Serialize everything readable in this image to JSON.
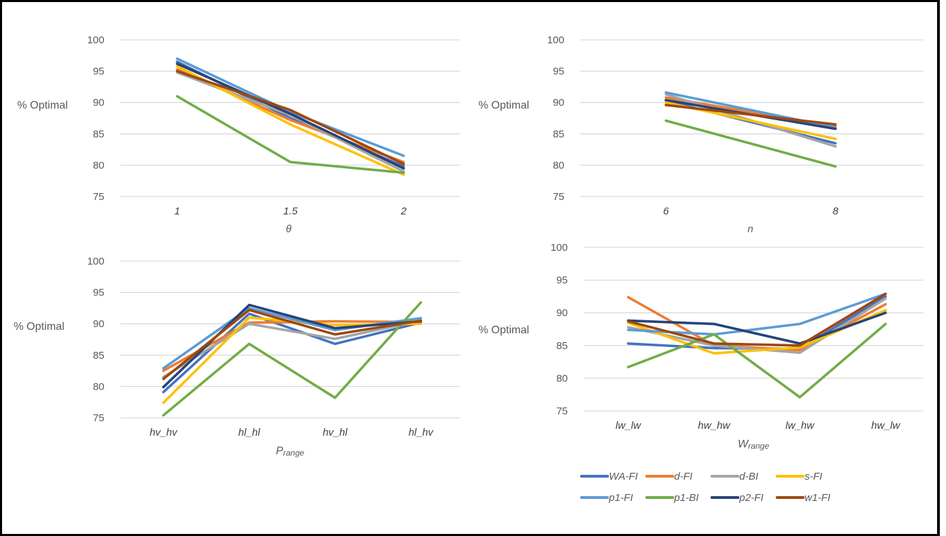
{
  "series_names": [
    "WA-FI",
    "d-FI",
    "d-BI",
    "s-FI",
    "p1-FI",
    "p1-BI",
    "p2-FI",
    "w1-FI"
  ],
  "series_colors": {
    "WA-FI": "#4472C4",
    "d-FI": "#ED7D31",
    "d-BI": "#A5A5A5",
    "s-FI": "#FFC000",
    "p1-FI": "#5B9BD5",
    "p1-BI": "#70AD47",
    "p2-FI": "#264478",
    "w1-FI": "#9E480E"
  },
  "legend": {
    "placement": "bottom-right",
    "rows": [
      [
        "WA-FI",
        "d-FI",
        "d-BI",
        "s-FI"
      ],
      [
        "p1-FI",
        "p1-BI",
        "p2-FI",
        "w1-FI"
      ]
    ]
  },
  "chart_data": [
    {
      "id": "theta",
      "type": "line",
      "title": "",
      "xlabel": "θ",
      "ylabel": "% Optimal",
      "categories": [
        "1",
        "1.5",
        "2"
      ],
      "ylim": [
        75,
        100
      ],
      "yticks": [
        75,
        80,
        85,
        90,
        95,
        100
      ],
      "grid": true,
      "series": [
        {
          "name": "WA-FI",
          "values": [
            96.5,
            87.5,
            79.8
          ]
        },
        {
          "name": "d-FI",
          "values": [
            95.3,
            87.2,
            80.5
          ]
        },
        {
          "name": "d-BI",
          "values": [
            94.8,
            88.0,
            79.0
          ]
        },
        {
          "name": "s-FI",
          "values": [
            95.8,
            86.5,
            78.5
          ]
        },
        {
          "name": "p1-FI",
          "values": [
            97.0,
            88.5,
            81.5
          ]
        },
        {
          "name": "p1-BI",
          "values": [
            91.0,
            80.5,
            78.8
          ]
        },
        {
          "name": "p2-FI",
          "values": [
            96.2,
            88.2,
            79.5
          ]
        },
        {
          "name": "w1-FI",
          "values": [
            95.0,
            88.8,
            80.2
          ]
        }
      ]
    },
    {
      "id": "n",
      "type": "line",
      "title": "",
      "xlabel": "n",
      "ylabel": "% Optimal",
      "categories": [
        "6",
        "8"
      ],
      "ylim": [
        75,
        100
      ],
      "yticks": [
        75,
        80,
        85,
        90,
        95,
        100
      ],
      "grid": true,
      "series": [
        {
          "name": "WA-FI",
          "values": [
            90.3,
            83.5
          ]
        },
        {
          "name": "d-FI",
          "values": [
            90.8,
            86.2
          ]
        },
        {
          "name": "d-BI",
          "values": [
            91.3,
            83.0
          ]
        },
        {
          "name": "s-FI",
          "values": [
            90.0,
            84.2
          ]
        },
        {
          "name": "p1-FI",
          "values": [
            91.6,
            86.0
          ]
        },
        {
          "name": "p1-BI",
          "values": [
            87.1,
            79.8
          ]
        },
        {
          "name": "p2-FI",
          "values": [
            90.4,
            85.8
          ]
        },
        {
          "name": "w1-FI",
          "values": [
            89.6,
            86.5
          ]
        }
      ]
    },
    {
      "id": "prange",
      "type": "line",
      "title": "",
      "xlabel": "Prange",
      "ylabel": "% Optimal",
      "categories": [
        "hv_hv",
        "hl_hl",
        "hv_hl",
        "hl_hv"
      ],
      "ylim": [
        75,
        100
      ],
      "yticks": [
        75,
        80,
        85,
        90,
        95,
        100
      ],
      "grid": true,
      "series": [
        {
          "name": "WA-FI",
          "values": [
            79.1,
            91.6,
            86.8,
            90.2
          ]
        },
        {
          "name": "d-FI",
          "values": [
            82.5,
            90.2,
            90.4,
            90.3
          ]
        },
        {
          "name": "d-BI",
          "values": [
            81.5,
            90.0,
            87.6,
            90.5
          ]
        },
        {
          "name": "s-FI",
          "values": [
            77.4,
            91.0,
            89.8,
            90.0
          ]
        },
        {
          "name": "p1-FI",
          "values": [
            82.9,
            92.5,
            89.0,
            90.9
          ]
        },
        {
          "name": "p1-BI",
          "values": [
            75.4,
            86.8,
            78.2,
            93.4
          ]
        },
        {
          "name": "p2-FI",
          "values": [
            79.9,
            93.0,
            89.3,
            90.4
          ]
        },
        {
          "name": "w1-FI",
          "values": [
            81.2,
            92.2,
            88.3,
            90.5
          ]
        }
      ]
    },
    {
      "id": "wrange",
      "type": "line",
      "title": "",
      "xlabel": "Wrange",
      "ylabel": "% Optimal",
      "categories": [
        "lw_lw",
        "hw_hw",
        "lw_hw",
        "hw_lw"
      ],
      "ylim": [
        75,
        100
      ],
      "yticks": [
        75,
        80,
        85,
        90,
        95,
        100
      ],
      "grid": true,
      "series": [
        {
          "name": "WA-FI",
          "values": [
            85.3,
            84.6,
            84.5,
            92.5
          ]
        },
        {
          "name": "d-FI",
          "values": [
            92.4,
            85.0,
            84.3,
            91.3
          ]
        },
        {
          "name": "d-BI",
          "values": [
            87.8,
            85.0,
            83.9,
            92.2
          ]
        },
        {
          "name": "s-FI",
          "values": [
            88.5,
            83.8,
            84.7,
            90.4
          ]
        },
        {
          "name": "p1-FI",
          "values": [
            87.4,
            86.7,
            88.3,
            92.9
          ]
        },
        {
          "name": "p1-BI",
          "values": [
            81.7,
            86.7,
            77.1,
            88.3
          ]
        },
        {
          "name": "p2-FI",
          "values": [
            88.8,
            88.3,
            85.3,
            90.0
          ]
        },
        {
          "name": "w1-FI",
          "values": [
            88.7,
            85.3,
            85.0,
            92.9
          ]
        }
      ]
    }
  ]
}
